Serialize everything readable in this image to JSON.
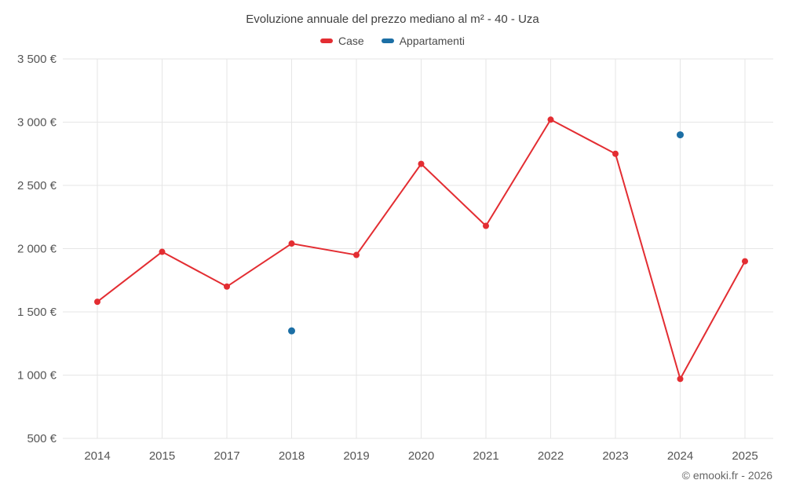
{
  "header": {
    "title": "Evoluzione annuale del prezzo mediano al m² - 40 - Uza"
  },
  "legend": [
    {
      "label": "Case",
      "color": "#e32d32"
    },
    {
      "label": "Appartamenti",
      "color": "#1c6fa5"
    }
  ],
  "footer": {
    "credit": "© emooki.fr - 2026"
  },
  "colors": {
    "case_series": "#e32d32",
    "appartamenti_series": "#1c6fa5",
    "gridline": "#e6e6e6",
    "tick_text": "#555555"
  },
  "chart_data": {
    "type": "line",
    "title": "Evoluzione annuale del prezzo mediano al m² - 40 - Uza",
    "categories": [
      "2014",
      "2015",
      "2017",
      "2018",
      "2019",
      "2020",
      "2021",
      "2022",
      "2023",
      "2024",
      "2025"
    ],
    "series": [
      {
        "name": "Case",
        "type": "line",
        "color": "#e32d32",
        "values": [
          1580,
          1975,
          1700,
          2040,
          1950,
          2670,
          2180,
          3020,
          2750,
          970,
          1900
        ]
      },
      {
        "name": "Appartamenti",
        "type": "scatter",
        "color": "#1c6fa5",
        "values": [
          null,
          null,
          null,
          1350,
          null,
          null,
          null,
          null,
          null,
          2900,
          null
        ]
      }
    ],
    "ylim": [
      500,
      3500
    ],
    "ytick_step": 500,
    "ytick_labels": [
      "500 €",
      "1 000 €",
      "1 500 €",
      "2 000 €",
      "2 500 €",
      "3 000 €",
      "3 500 €"
    ],
    "xlabel": "",
    "ylabel": "",
    "grid": true,
    "legend_position": "top"
  }
}
